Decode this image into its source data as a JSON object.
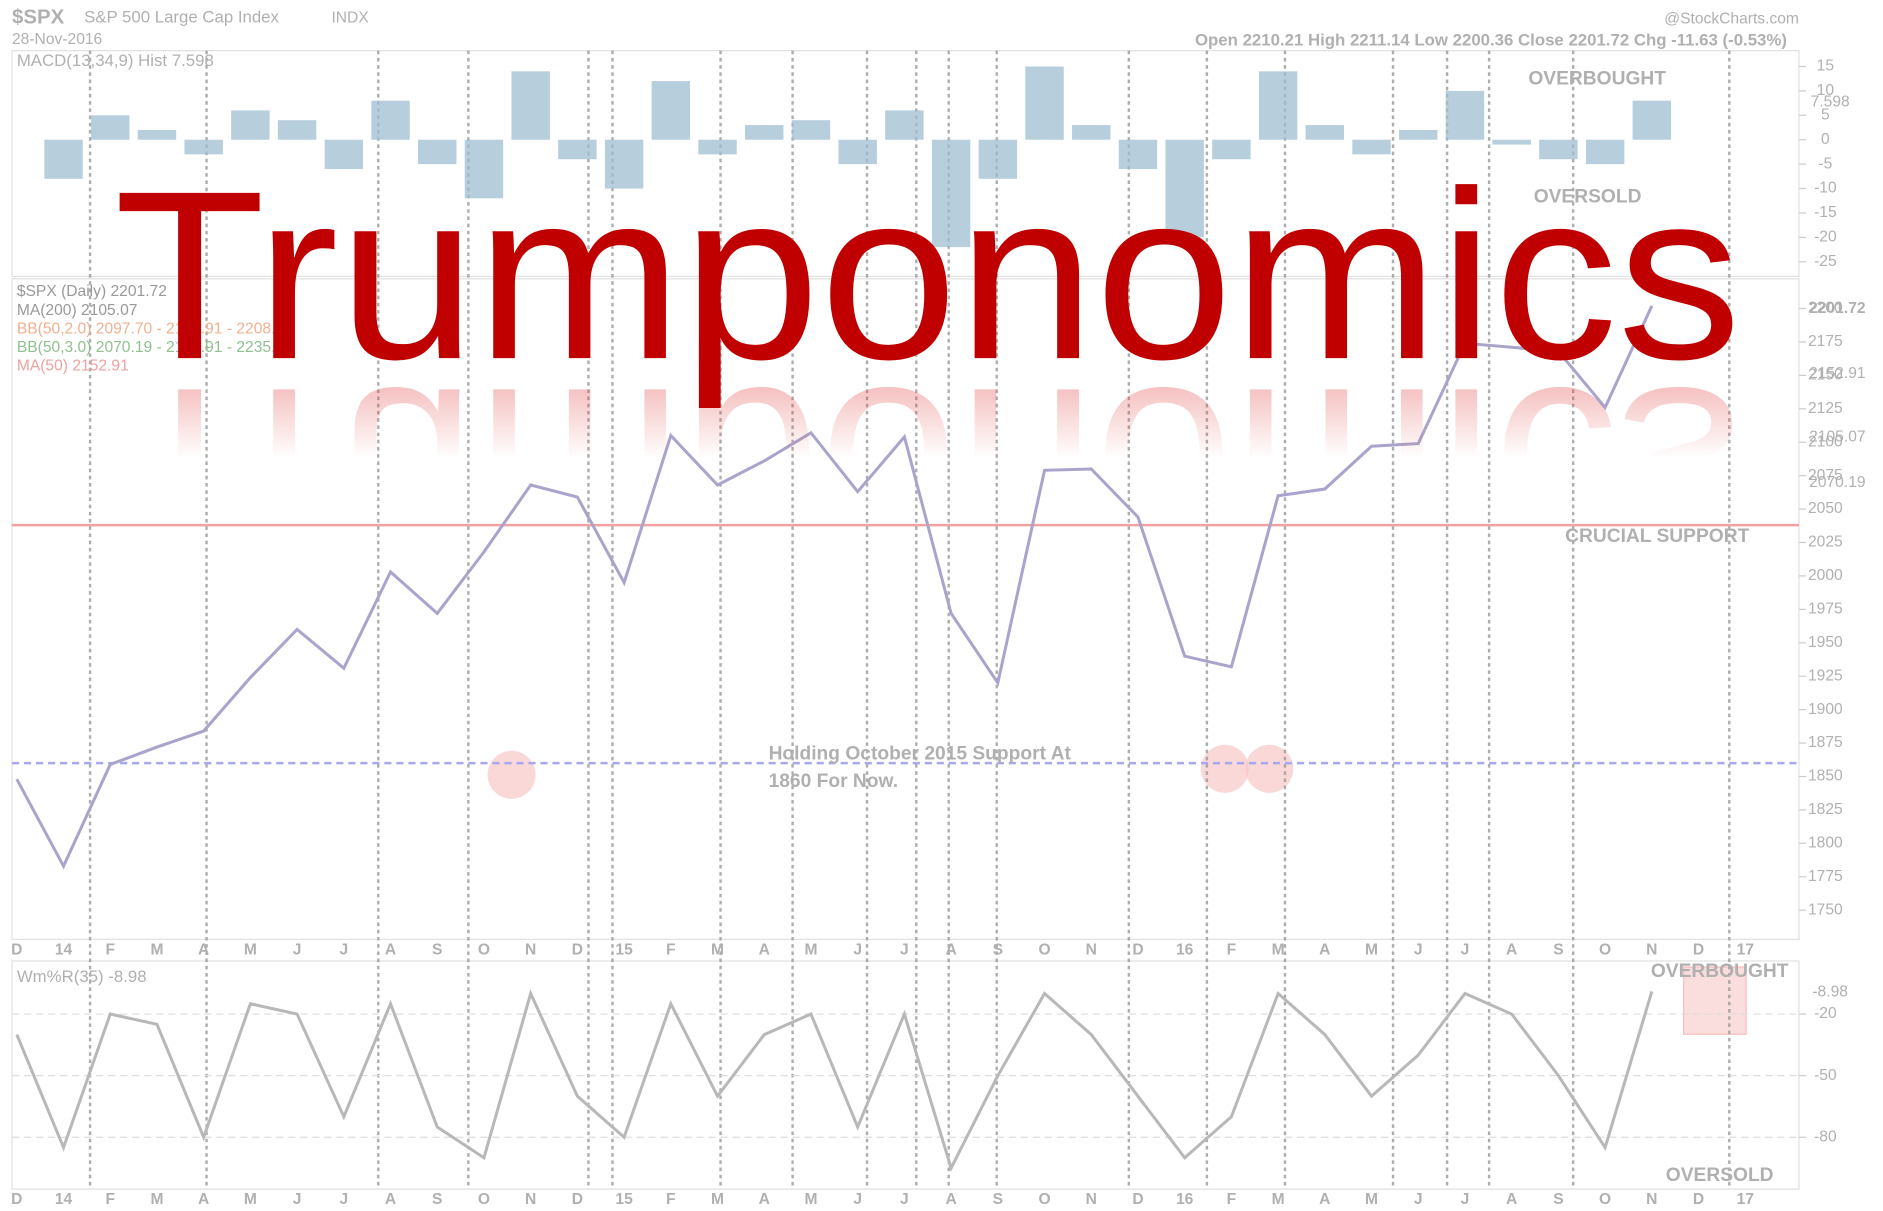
{
  "header": {
    "symbol": "$SPX",
    "name": "S&P 500 Large Cap Index",
    "exchange": "INDX",
    "date": "28-Nov-2016",
    "credit": "@StockCharts.com",
    "ohlc": "Open 2210.21  High 2211.14  Low 2200.36  Close 2201.72  Chg -11.63 (-0.53%)"
  },
  "headline": "Trumponomics",
  "chart_data": [
    {
      "type": "bar",
      "title": "MACD(13,34,9) Hist 7.598",
      "color": "#9fbdd0",
      "categories": [
        "D",
        "14",
        "F",
        "M",
        "A",
        "M",
        "J",
        "J",
        "A",
        "S",
        "O",
        "N",
        "D",
        "15",
        "F",
        "M",
        "A",
        "M",
        "J",
        "J",
        "A",
        "S",
        "O",
        "N",
        "D",
        "16",
        "F",
        "M",
        "A",
        "M",
        "J",
        "J",
        "A",
        "S",
        "O",
        "N",
        "D",
        "17"
      ],
      "values": [
        0,
        -8,
        5,
        2,
        -3,
        6,
        4,
        -6,
        8,
        -5,
        -12,
        14,
        -4,
        -10,
        12,
        -3,
        3,
        4,
        -5,
        6,
        -22,
        -8,
        15,
        3,
        -6,
        -20,
        -4,
        14,
        3,
        -3,
        2,
        10,
        -1,
        -4,
        -5,
        8,
        null,
        null
      ],
      "ylim": [
        -28,
        17
      ],
      "yticks": [
        15,
        10,
        5,
        0,
        -5,
        -10,
        -15,
        -20,
        -25
      ],
      "annotations": [
        "OVERBOUGHT",
        "OVERSOLD"
      ],
      "last_label": "7.598"
    },
    {
      "type": "line",
      "legend": [
        "$SPX (Daily) 2201.72",
        "MA(200) 2105.07",
        "BB(50,2.0) 2097.70 - 2152.91 - 2208.12",
        "BB(50,3.0) 2070.19 - 2152.91 - 2235.62",
        "MA(50) 2152.91"
      ],
      "color": "#a8a4cc",
      "values": [
        1848,
        1783,
        1859,
        1872,
        1884,
        1924,
        1960,
        1931,
        2003,
        1972,
        2018,
        2068,
        2059,
        1995,
        2105,
        2068,
        2086,
        2107,
        2063,
        2104,
        1972,
        1920,
        2079,
        2080,
        2044,
        1940,
        1932,
        2060,
        2065,
        2097,
        2099,
        2174,
        2171,
        2168,
        2126,
        2202,
        null,
        null
      ],
      "ylim": [
        1730,
        2215
      ],
      "yticks": [
        1750,
        1775,
        1800,
        1825,
        1850,
        1875,
        1900,
        1925,
        1950,
        1975,
        2000,
        2025,
        2050,
        2075,
        2100,
        2125,
        2150,
        2175,
        2200
      ],
      "hlines": [
        {
          "value": 2038,
          "color": "#f4a0a0"
        },
        {
          "value": 1860,
          "color": "#a8a8f0"
        }
      ],
      "annotations": [
        "CRUCIAL SUPPORT",
        "Holding October 2015 Support At",
        "1860 For Now."
      ],
      "right_labels": [
        "2201.72",
        "2152.91",
        "2105.07",
        "2070.19"
      ]
    },
    {
      "type": "line",
      "title": "Wm%R(35) -8.98",
      "color": "#b8b8b8",
      "values": [
        -30,
        -85,
        -20,
        -25,
        -80,
        -15,
        -20,
        -70,
        -15,
        -75,
        -90,
        -10,
        -60,
        -80,
        -15,
        -60,
        -30,
        -20,
        -75,
        -20,
        -95,
        -50,
        -10,
        -30,
        -60,
        -90,
        -70,
        -10,
        -30,
        -60,
        -40,
        -10,
        -20,
        -50,
        -85,
        -9,
        null,
        null
      ],
      "ylim": [
        -100,
        0
      ],
      "yticks": [
        -20,
        -50,
        -80
      ],
      "annotations": [
        "OVERBOUGHT",
        "OVERSOLD"
      ],
      "last_label": "-8.98"
    }
  ]
}
